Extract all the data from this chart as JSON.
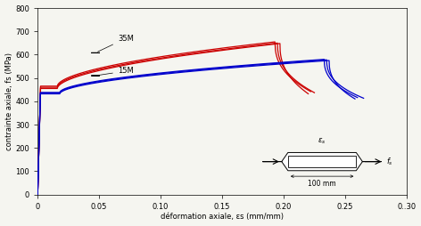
{
  "title": "",
  "xlabel": "déformation axiale, εs (mm/mm)",
  "ylabel": "contrainte axiale, fs (MPa)",
  "xlim": [
    0,
    0.3
  ],
  "ylim": [
    0,
    800
  ],
  "yticks": [
    0,
    100,
    200,
    300,
    400,
    500,
    600,
    700,
    800
  ],
  "label_35M": "35M",
  "label_15M": "15M",
  "color_35M": "#cc0000",
  "color_15M": "#0000cc",
  "inset_gauge_length": "100 mm",
  "background_color": "#f5f5f0",
  "curves_35M": [
    {
      "fy": 460,
      "fu": 650,
      "emax": 0.225,
      "esu": 0.195
    },
    {
      "fy": 465,
      "fu": 655,
      "emax": 0.222,
      "esu": 0.193
    },
    {
      "fy": 455,
      "fu": 648,
      "emax": 0.22,
      "esu": 0.197
    }
  ],
  "curves_15M": [
    {
      "fy": 435,
      "fu": 578,
      "emax": 0.265,
      "esu": 0.235
    },
    {
      "fy": 438,
      "fu": 580,
      "emax": 0.26,
      "esu": 0.233
    },
    {
      "fy": 432,
      "fu": 575,
      "emax": 0.258,
      "esu": 0.237
    }
  ]
}
